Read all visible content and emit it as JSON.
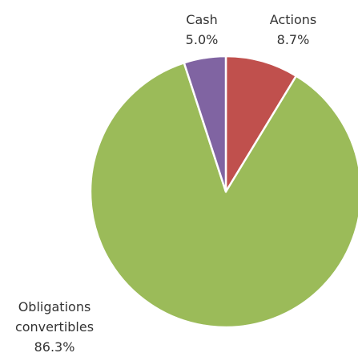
{
  "chart_data": {
    "type": "pie",
    "categories": [
      "Actions",
      "Obligations convertibles",
      "Cash"
    ],
    "values": [
      8.7,
      86.3,
      5.0
    ],
    "value_labels": [
      "8.7%",
      "86.3%",
      "5.0%"
    ],
    "colors": [
      "#c0504d",
      "#9bbb59",
      "#8064a2"
    ]
  }
}
